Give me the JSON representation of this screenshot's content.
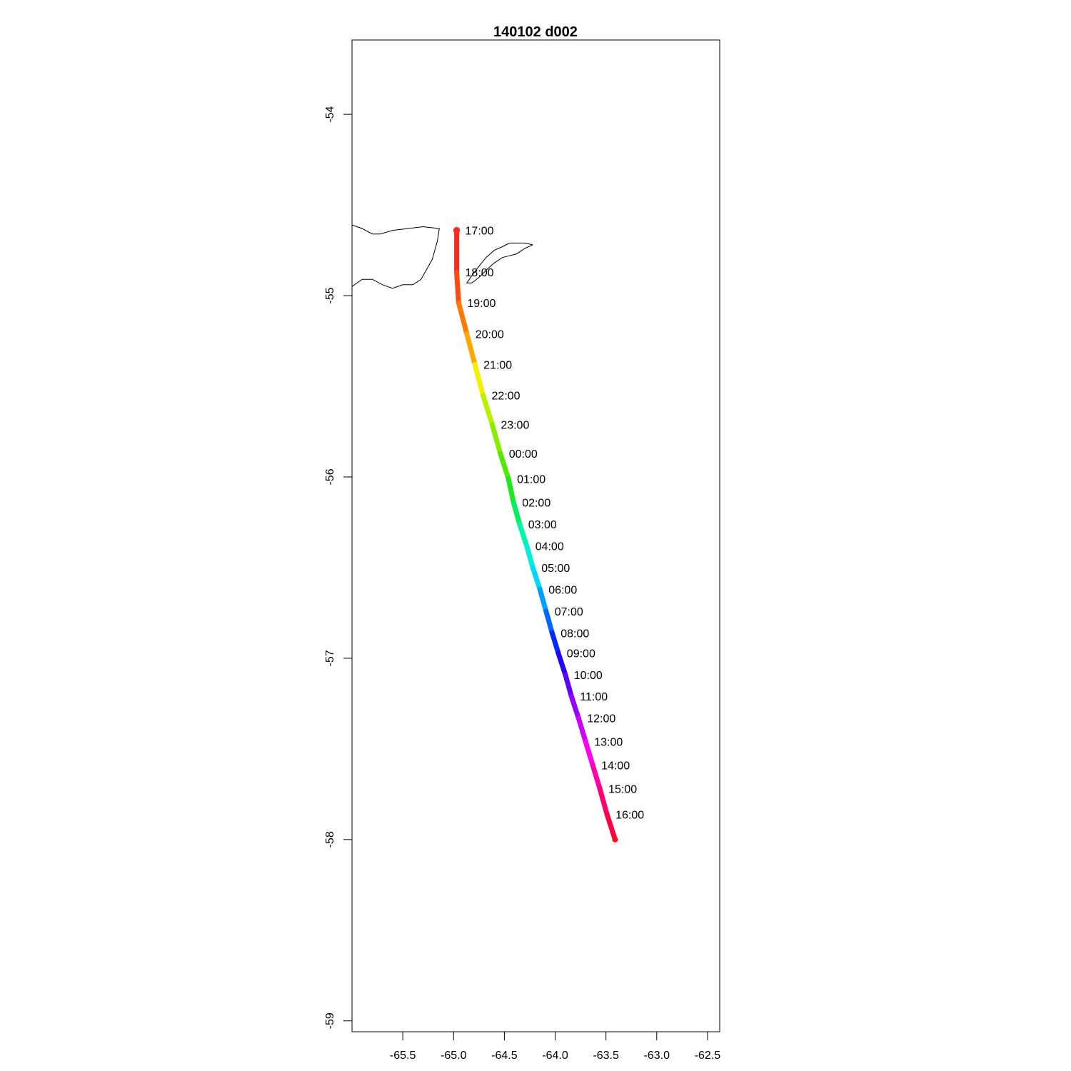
{
  "chart_data": {
    "type": "line",
    "title": "140102   d002",
    "xlabel": "",
    "ylabel": "",
    "xlim": [
      -66.0,
      -62.38
    ],
    "ylim": [
      -59.06,
      -53.59
    ],
    "x_ticks": [
      -65.5,
      -65.0,
      -64.5,
      -64.0,
      -63.5,
      -63.0,
      -62.5
    ],
    "x_tick_labels": [
      "-65.5",
      "-65.0",
      "-64.5",
      "-64.0",
      "-63.5",
      "-63.0",
      "-62.5"
    ],
    "y_ticks": [
      -54,
      -55,
      -56,
      -57,
      -58,
      -59
    ],
    "y_tick_labels": [
      "-54",
      "-55",
      "-56",
      "-57",
      "-58",
      "-59"
    ],
    "grid": false,
    "track": {
      "color_scale": "rainbow",
      "points": [
        {
          "lon": -64.97,
          "lat": -54.64,
          "time": "17:00",
          "color": "#ff2a1f"
        },
        {
          "lon": -64.97,
          "lat": -54.87,
          "time": "18:00",
          "color": "#ff4a10"
        },
        {
          "lon": -64.95,
          "lat": -55.04,
          "time": "19:00",
          "color": "#ff7a00"
        },
        {
          "lon": -64.87,
          "lat": -55.21,
          "time": "20:00",
          "color": "#ffa800"
        },
        {
          "lon": -64.79,
          "lat": -55.38,
          "time": "21:00",
          "color": "#f2f200"
        },
        {
          "lon": -64.71,
          "lat": -55.55,
          "time": "22:00",
          "color": "#b8f200"
        },
        {
          "lon": -64.62,
          "lat": -55.71,
          "time": "23:00",
          "color": "#88ee00"
        },
        {
          "lon": -64.54,
          "lat": -55.87,
          "time": "00:00",
          "color": "#55e800"
        },
        {
          "lon": -64.46,
          "lat": -56.01,
          "time": "01:00",
          "color": "#1ee81e"
        },
        {
          "lon": -64.41,
          "lat": -56.14,
          "time": "02:00",
          "color": "#00ee60"
        },
        {
          "lon": -64.35,
          "lat": -56.26,
          "time": "03:00",
          "color": "#00f5a8"
        },
        {
          "lon": -64.28,
          "lat": -56.38,
          "time": "04:00",
          "color": "#00eedd"
        },
        {
          "lon": -64.22,
          "lat": -56.5,
          "time": "05:00",
          "color": "#00d8ff"
        },
        {
          "lon": -64.15,
          "lat": -56.62,
          "time": "06:00",
          "color": "#00a0ff"
        },
        {
          "lon": -64.09,
          "lat": -56.74,
          "time": "07:00",
          "color": "#0066ff"
        },
        {
          "lon": -64.03,
          "lat": -56.86,
          "time": "08:00",
          "color": "#0028ff"
        },
        {
          "lon": -63.97,
          "lat": -56.97,
          "time": "09:00",
          "color": "#2200ff"
        },
        {
          "lon": -63.9,
          "lat": -57.09,
          "time": "10:00",
          "color": "#5c00ff"
        },
        {
          "lon": -63.84,
          "lat": -57.21,
          "time": "11:00",
          "color": "#9600ff"
        },
        {
          "lon": -63.77,
          "lat": -57.33,
          "time": "12:00",
          "color": "#cc00ff"
        },
        {
          "lon": -63.7,
          "lat": -57.46,
          "time": "13:00",
          "color": "#ff00ee"
        },
        {
          "lon": -63.63,
          "lat": -57.59,
          "time": "14:00",
          "color": "#ff00aa"
        },
        {
          "lon": -63.56,
          "lat": -57.72,
          "time": "15:00",
          "color": "#ff0070"
        },
        {
          "lon": -63.49,
          "lat": -57.86,
          "time": "16:00",
          "color": "#ff0040"
        },
        {
          "lon": -63.41,
          "lat": -58.0,
          "time": "",
          "color": "#ff1010"
        }
      ]
    },
    "coastlines": [
      {
        "name": "coast-west",
        "points": [
          [
            -66.0,
            -54.61
          ],
          [
            -65.9,
            -54.63
          ],
          [
            -65.8,
            -54.66
          ],
          [
            -65.72,
            -54.66
          ],
          [
            -65.6,
            -54.64
          ],
          [
            -65.45,
            -54.63
          ],
          [
            -65.3,
            -54.62
          ],
          [
            -65.14,
            -54.63
          ],
          [
            -65.16,
            -54.7
          ],
          [
            -65.21,
            -54.8
          ],
          [
            -65.27,
            -54.86
          ],
          [
            -65.32,
            -54.91
          ],
          [
            -65.4,
            -54.94
          ],
          [
            -65.5,
            -54.94
          ],
          [
            -65.6,
            -54.96
          ],
          [
            -65.7,
            -54.94
          ],
          [
            -65.8,
            -54.91
          ],
          [
            -65.9,
            -54.91
          ],
          [
            -66.0,
            -54.95
          ]
        ]
      },
      {
        "name": "coast-east",
        "points": [
          [
            -64.22,
            -54.72
          ],
          [
            -64.3,
            -54.74
          ],
          [
            -64.38,
            -54.77
          ],
          [
            -64.45,
            -54.78
          ],
          [
            -64.52,
            -54.79
          ],
          [
            -64.6,
            -54.82
          ],
          [
            -64.68,
            -54.86
          ],
          [
            -64.75,
            -54.9
          ],
          [
            -64.82,
            -54.93
          ],
          [
            -64.87,
            -54.93
          ],
          [
            -64.82,
            -54.89
          ],
          [
            -64.74,
            -54.83
          ],
          [
            -64.68,
            -54.79
          ],
          [
            -64.6,
            -54.75
          ],
          [
            -64.52,
            -54.73
          ],
          [
            -64.45,
            -54.71
          ],
          [
            -64.38,
            -54.71
          ],
          [
            -64.3,
            -54.71
          ],
          [
            -64.22,
            -54.72
          ]
        ]
      }
    ]
  }
}
